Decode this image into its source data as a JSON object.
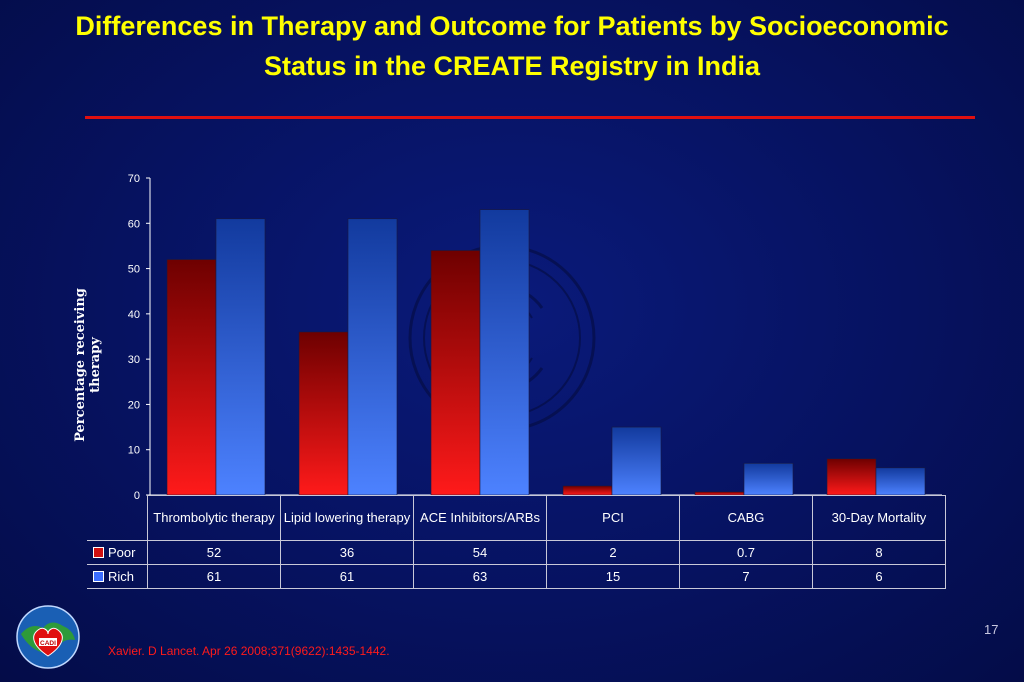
{
  "title": "Differences in Therapy and Outcome for Patients by Socioeconomic Status in the CREATE Registry in India",
  "page_number": "17",
  "citation": "Xavier. D Lancet. Apr 26 2008;371(9622):1435-1442.",
  "colors": {
    "title": "#ffff00",
    "rule": "#e01010",
    "poor": "#d01010",
    "rich": "#3a6cff",
    "background": "#061260"
  },
  "logo": {
    "icon": "cadi-logo-icon",
    "text": "CADI"
  },
  "chart_data": {
    "type": "bar",
    "title": "",
    "xlabel": "",
    "ylabel": "Percentage receiving therapy",
    "ylim": [
      0,
      70
    ],
    "yticks": [
      0,
      10,
      20,
      30,
      40,
      50,
      60,
      70
    ],
    "categories": [
      "Thrombolytic therapy",
      "Lipid lowering therapy",
      "ACE Inhibitors/ARBs",
      "PCI",
      "CABG",
      "30-Day Mortality"
    ],
    "series": [
      {
        "name": "Poor",
        "values": [
          52,
          36,
          54,
          2,
          0.7,
          8
        ]
      },
      {
        "name": "Rich",
        "values": [
          61,
          61,
          63,
          15,
          7,
          6
        ]
      }
    ],
    "table_values": {
      "Poor": [
        "52",
        "36",
        "54",
        "2",
        "0.7",
        "8"
      ],
      "Rich": [
        "61",
        "61",
        "63",
        "15",
        "7",
        "6"
      ]
    },
    "grid": false,
    "legend": "data table below chart"
  }
}
